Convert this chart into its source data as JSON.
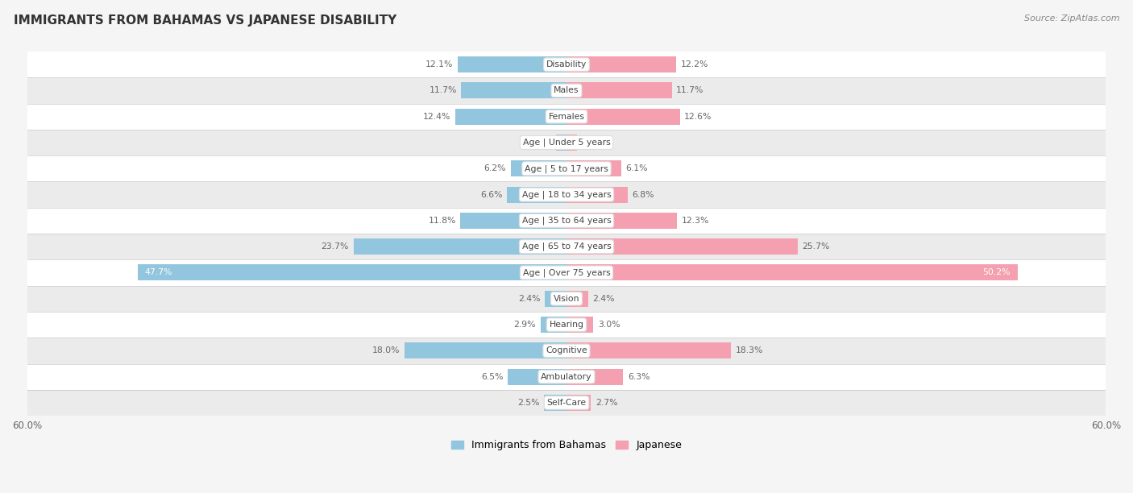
{
  "title": "IMMIGRANTS FROM BAHAMAS VS JAPANESE DISABILITY",
  "source": "Source: ZipAtlas.com",
  "categories": [
    "Disability",
    "Males",
    "Females",
    "Age | Under 5 years",
    "Age | 5 to 17 years",
    "Age | 18 to 34 years",
    "Age | 35 to 64 years",
    "Age | 65 to 74 years",
    "Age | Over 75 years",
    "Vision",
    "Hearing",
    "Cognitive",
    "Ambulatory",
    "Self-Care"
  ],
  "bahamas_values": [
    12.1,
    11.7,
    12.4,
    1.2,
    6.2,
    6.6,
    11.8,
    23.7,
    47.7,
    2.4,
    2.9,
    18.0,
    6.5,
    2.5
  ],
  "japanese_values": [
    12.2,
    11.7,
    12.6,
    1.2,
    6.1,
    6.8,
    12.3,
    25.7,
    50.2,
    2.4,
    3.0,
    18.3,
    6.3,
    2.7
  ],
  "bahamas_color": "#92C5DE",
  "japanese_color": "#F4A0B0",
  "axis_limit": 60.0,
  "background_color": "#f5f5f5",
  "legend_bahamas": "Immigrants from Bahamas",
  "legend_japanese": "Japanese"
}
